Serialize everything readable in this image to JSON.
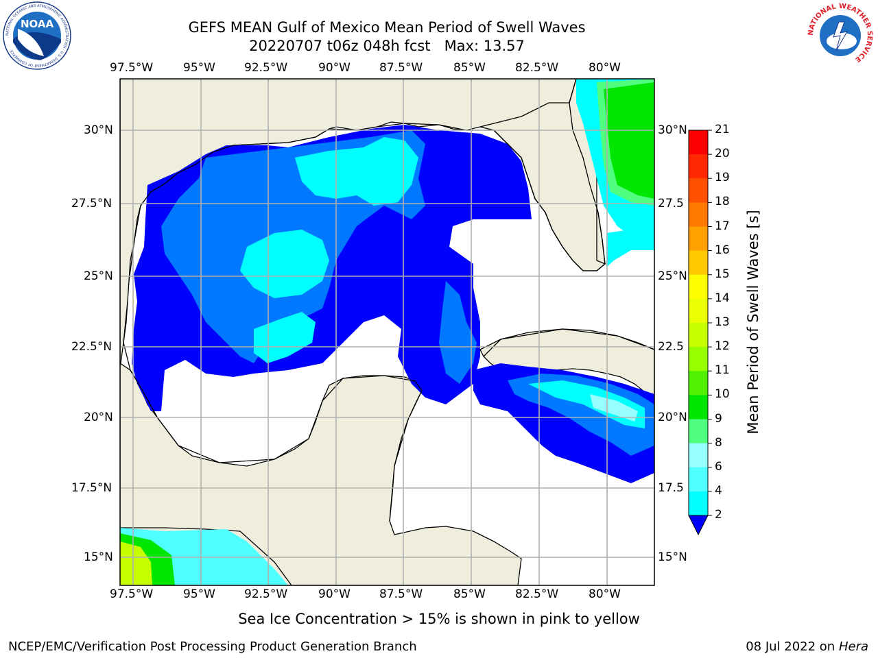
{
  "header": {
    "title_line1": "GEFS MEAN Gulf of Mexico Mean Period of Swell Waves",
    "title_line2": "20220707 t06z 048h fcst   Max: 13.57"
  },
  "logos": {
    "left": "NOAA",
    "left_ring_text": "NATIONAL OCEANIC AND ATMOSPHERIC ADMINISTRATION · U.S. DEPARTMENT OF COMMERCE",
    "right_ring_text": "NATIONAL WEATHER SERVICE"
  },
  "map": {
    "lon_labels": [
      "97.5°W",
      "95°W",
      "92.5°W",
      "90°W",
      "87.5°W",
      "85°W",
      "82.5°W",
      "80°W"
    ],
    "lat_labels_left": [
      "30°N",
      "27.5°N",
      "25°N",
      "22.5°N",
      "20°N",
      "17.5°N",
      "15°N"
    ],
    "lat_labels_right": [
      "30°N",
      "27.5",
      "25°N",
      "22.5",
      "20°N",
      "17.5",
      "15°N"
    ],
    "land_color": "#efeedd",
    "grid": true
  },
  "colorbar": {
    "label": "Mean Period of Swell Waves [s]",
    "ticks": [
      "21",
      "20",
      "19",
      "18",
      "17",
      "16",
      "15",
      "14",
      "13",
      "12",
      "11",
      "10",
      "9",
      "8",
      "6",
      "4",
      "2"
    ],
    "colors_top_to_bottom": [
      "#ff0000",
      "#ff2800",
      "#ff5000",
      "#ff7800",
      "#ffa000",
      "#ffc800",
      "#ffff00",
      "#eaff00",
      "#c8ff00",
      "#96ff00",
      "#50f000",
      "#00e600",
      "#50ff80",
      "#96ffff",
      "#50ffff",
      "#00ffff",
      "#0078ff",
      "#0000ff"
    ],
    "extend": "min"
  },
  "notes": {
    "sea_ice": "Sea Ice Concentration > 15% is shown in pink to yellow"
  },
  "footer": {
    "left": "NCEP/EMC/Verification Post Processing Product Generation Branch",
    "date": "08 Jul 2022 on ",
    "host": "Hera"
  }
}
